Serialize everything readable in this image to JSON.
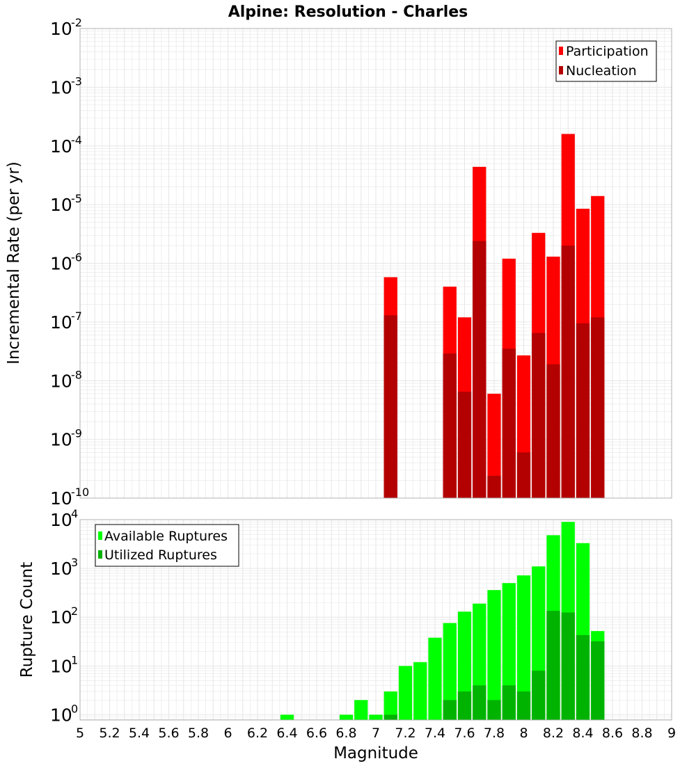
{
  "title": "Alpine: Resolution - Charles",
  "x_axis": {
    "label": "Magnitude",
    "range": [
      5,
      9
    ],
    "ticks": [
      "5",
      "5.2",
      "5.4",
      "5.6",
      "5.8",
      "6",
      "6.2",
      "6.4",
      "6.6",
      "6.8",
      "7",
      "7.2",
      "7.4",
      "7.6",
      "7.8",
      "8",
      "8.2",
      "8.4",
      "8.6",
      "8.8",
      "9"
    ]
  },
  "colors": {
    "participation": "#ff0000",
    "nucleation": "#b30000",
    "available": "#00ff00",
    "utilized": "#00b300",
    "grid": "#e6e6e6",
    "frame": "#b0b0b0"
  },
  "chart_data": [
    {
      "type": "bar",
      "panel": "rates",
      "ylabel": "Incremental Rate (per yr)",
      "y_scale": "log",
      "ylim": [
        1e-10,
        0.01
      ],
      "y_ticks": [
        {
          "base": "10",
          "exp": "-10"
        },
        {
          "base": "10",
          "exp": "-9"
        },
        {
          "base": "10",
          "exp": "-8"
        },
        {
          "base": "10",
          "exp": "-7"
        },
        {
          "base": "10",
          "exp": "-6"
        },
        {
          "base": "10",
          "exp": "-5"
        },
        {
          "base": "10",
          "exp": "-4"
        },
        {
          "base": "10",
          "exp": "-3"
        },
        {
          "base": "10",
          "exp": "-2"
        }
      ],
      "legend": {
        "position": "top-right",
        "entries": [
          "Participation",
          "Nucleation"
        ]
      },
      "x": [
        7.1,
        7.5,
        7.6,
        7.7,
        7.8,
        7.9,
        8.0,
        8.1,
        8.2,
        8.3,
        8.4,
        8.5
      ],
      "series": [
        {
          "name": "Participation",
          "values": [
            5.8e-07,
            4e-07,
            1.2e-07,
            4.4e-05,
            6e-09,
            1.2e-06,
            2.7e-08,
            3.3e-06,
            1.3e-06,
            0.00016,
            8.5e-06,
            1.4e-05
          ]
        },
        {
          "name": "Nucleation",
          "values": [
            1.3e-07,
            2.9e-08,
            6.5e-09,
            2.4e-06,
            2.4e-10,
            3.5e-08,
            6e-10,
            6.5e-08,
            1.9e-08,
            2e-06,
            9.5e-08,
            1.2e-07
          ]
        }
      ]
    },
    {
      "type": "bar",
      "panel": "counts",
      "ylabel": "Rupture Count",
      "y_scale": "log",
      "ylim": [
        0.78,
        10000
      ],
      "y_ticks": [
        {
          "base": "10",
          "exp": "0"
        },
        {
          "base": "10",
          "exp": "1"
        },
        {
          "base": "10",
          "exp": "2"
        },
        {
          "base": "10",
          "exp": "3"
        },
        {
          "base": "10",
          "exp": "4"
        }
      ],
      "legend": {
        "position": "top-left",
        "entries": [
          "Available Ruptures",
          "Utilized Ruptures"
        ]
      },
      "x": [
        6.4,
        6.8,
        6.9,
        7.0,
        7.1,
        7.2,
        7.3,
        7.4,
        7.5,
        7.6,
        7.7,
        7.8,
        7.9,
        8.0,
        8.1,
        8.2,
        8.3,
        8.4,
        8.5
      ],
      "series": [
        {
          "name": "Available Ruptures",
          "values": [
            1,
            1,
            2,
            1,
            3,
            10,
            12,
            38,
            76,
            130,
            190,
            360,
            500,
            720,
            1100,
            4800,
            9000,
            3300,
            52
          ]
        },
        {
          "name": "Utilized Ruptures",
          "values": [
            0,
            0,
            0,
            0,
            1,
            0,
            0,
            0,
            2,
            3,
            4,
            2,
            4,
            3,
            8,
            135,
            125,
            43,
            32
          ]
        }
      ]
    }
  ]
}
